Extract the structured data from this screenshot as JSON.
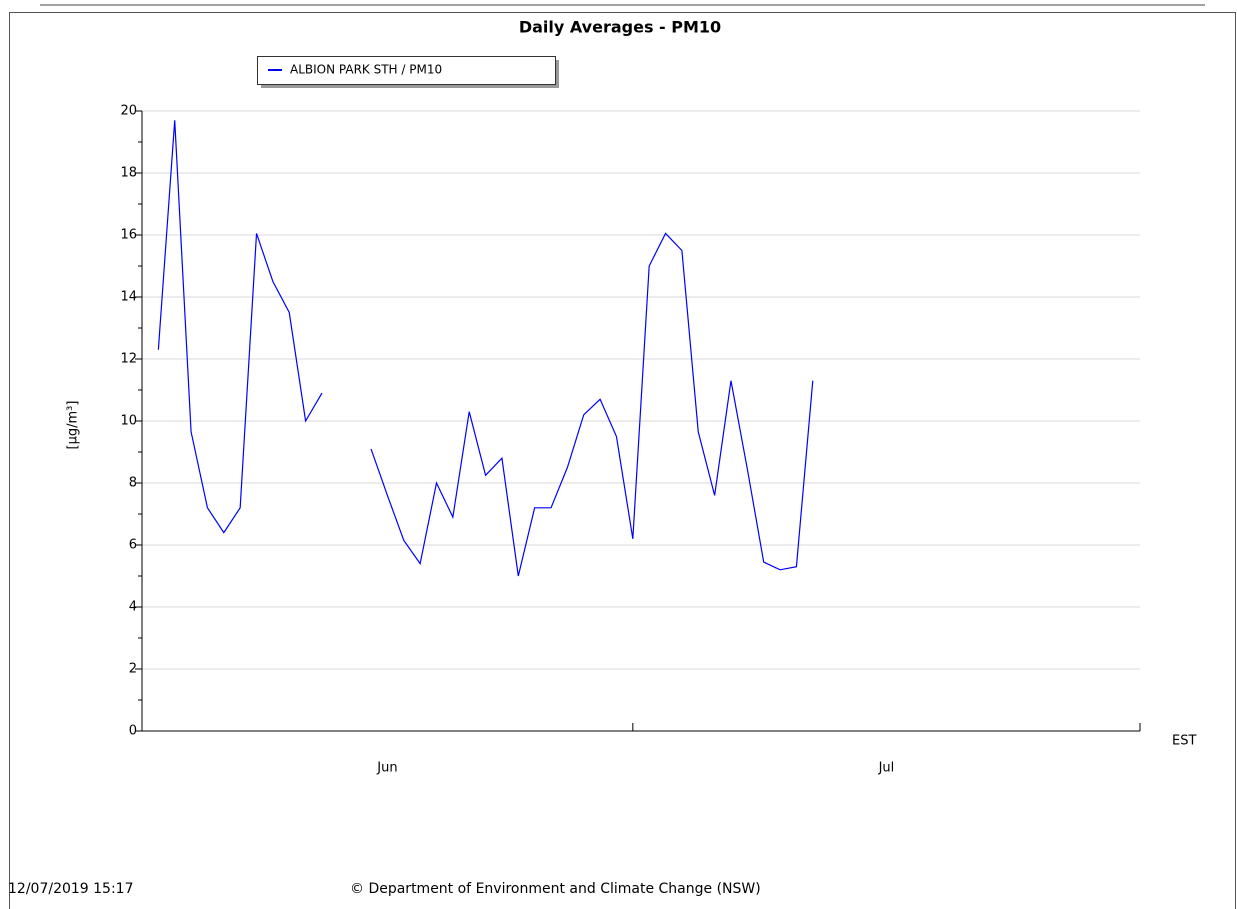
{
  "chart_data": {
    "type": "line",
    "title": "Daily Averages - PM10",
    "y_label": "[µg/m³]",
    "x_unit_label": "EST",
    "x": [
      1,
      2,
      3,
      4,
      5,
      6,
      7,
      8,
      9,
      10,
      11,
      12,
      13,
      14,
      15,
      16,
      17,
      18,
      19,
      20,
      21,
      22,
      23,
      24,
      25,
      26,
      27,
      28,
      29,
      30,
      31,
      32,
      33,
      34,
      35,
      36,
      37,
      38,
      39,
      40,
      41
    ],
    "series": [
      {
        "name": "ALBION PARK STH / PM10",
        "color": "#0000ff",
        "values": [
          12.3,
          19.7,
          9.65,
          7.2,
          6.4,
          7.2,
          16.05,
          14.5,
          13.5,
          10.0,
          10.9,
          null,
          null,
          9.1,
          7.6,
          6.15,
          5.4,
          8.0,
          6.9,
          10.3,
          8.25,
          8.8,
          5.0,
          7.2,
          7.2,
          8.5,
          10.2,
          10.7,
          9.5,
          6.2,
          15.0,
          16.05,
          15.5,
          9.65,
          7.6,
          11.3,
          8.45,
          5.45,
          5.2,
          5.3,
          11.3
        ]
      }
    ],
    "xlim": [
      0,
      61
    ],
    "xticks": [
      0,
      30,
      61
    ],
    "month_labels": [
      {
        "label": "Jun",
        "from": 0,
        "to": 30
      },
      {
        "label": "Jul",
        "from": 30,
        "to": 61
      }
    ],
    "ylim": [
      0,
      20
    ],
    "yticks": [
      0,
      2,
      4,
      6,
      8,
      10,
      12,
      14,
      16,
      18,
      20
    ],
    "yminorticks": [
      1,
      3,
      5,
      7,
      9,
      11,
      13,
      15,
      17,
      19
    ],
    "grid": true,
    "timestamp": "12/07/2019 15:17",
    "credit": "© Department of Environment and Climate Change (NSW)"
  }
}
